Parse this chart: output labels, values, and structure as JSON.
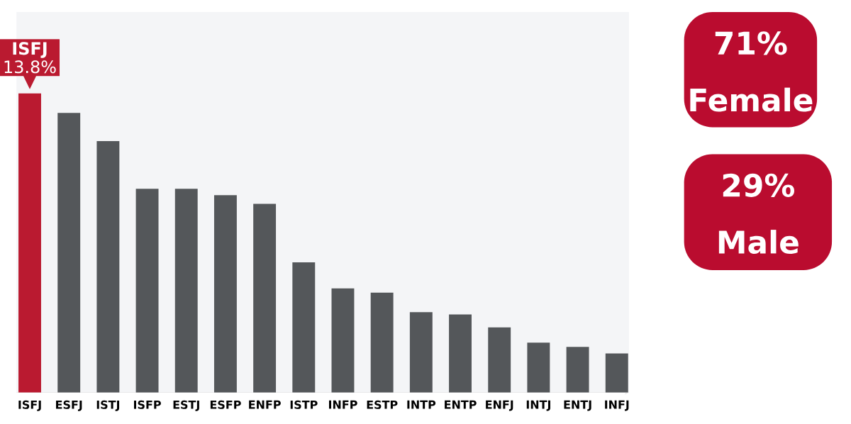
{
  "chart_data": [
    {
      "type": "bar",
      "tick_labels": "x",
      "categories": [
        "ISFJ",
        "ESFJ",
        "ISTJ",
        "ISFP",
        "ESTJ",
        "ESFP",
        "ENFP",
        "ISTP",
        "INFP",
        "ESTP",
        "INTP",
        "ENTP",
        "ENFJ",
        "INTJ",
        "ENTJ",
        "INFJ"
      ],
      "values": [
        13.8,
        12.9,
        11.6,
        9.4,
        9.4,
        9.1,
        8.7,
        6.0,
        4.8,
        4.6,
        3.7,
        3.6,
        3.0,
        2.3,
        2.1,
        1.8
      ],
      "colors": [
        "#ba1a30",
        "#54575a",
        "#54575a",
        "#54575a",
        "#54575a",
        "#54575a",
        "#54575a",
        "#54575a",
        "#54575a",
        "#54575a",
        "#54575a",
        "#54575a",
        "#54575a",
        "#54575a",
        "#54575a",
        "#54575a"
      ],
      "value_labels": [
        "13.8%",
        null,
        null,
        null,
        null,
        null,
        null,
        null,
        null,
        null,
        null,
        null,
        null,
        null,
        null,
        null
      ],
      "annotations": [
        {
          "text": "ISFJ",
          "x": "ISFJ",
          "y": 13.8
        }
      ]
    },
    {
      "type": "other",
      "color": "#ba0c2f",
      "annotations": [
        "71%",
        "Female",
        "29%",
        "Male"
      ]
    }
  ]
}
